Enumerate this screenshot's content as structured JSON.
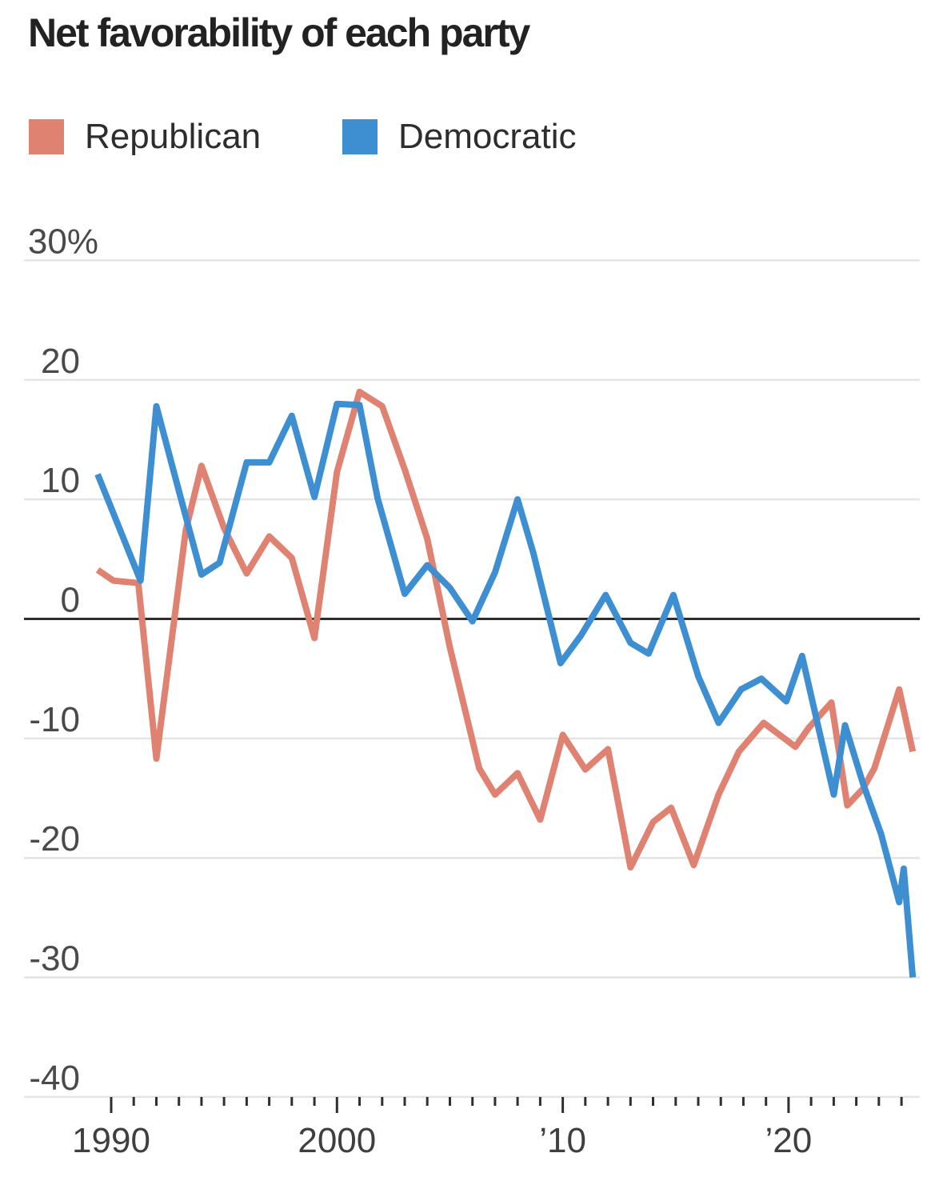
{
  "header": {
    "title": "Net favorability of each party"
  },
  "legend": {
    "items": [
      {
        "label": "Republican",
        "color": "#df8271"
      },
      {
        "label": "Democratic",
        "color": "#3e8fd2"
      }
    ]
  },
  "colors": {
    "republican": "#df8271",
    "democratic": "#3e8fd2",
    "gridline": "#e4e4e4",
    "zero_line": "#2d2d2d",
    "tick": "#2f2f2f",
    "title_text": "#222222",
    "axis_text": "#4a4a4a"
  },
  "chart_data": {
    "type": "line",
    "title": "Net favorability of each party",
    "grid": "horizontal",
    "legend_position": "top-left",
    "y_axis": {
      "unit": "%",
      "range": [
        -40,
        30
      ],
      "zero_line": true,
      "ticks": [
        {
          "value": 30,
          "label": "30%"
        },
        {
          "value": 20,
          "label": "20"
        },
        {
          "value": 10,
          "label": "10"
        },
        {
          "value": 0,
          "label": "0"
        },
        {
          "value": -10,
          "label": "-10"
        },
        {
          "value": -20,
          "label": "-20"
        },
        {
          "value": -30,
          "label": "-30"
        },
        {
          "value": -40,
          "label": "-40"
        }
      ]
    },
    "x_axis": {
      "range": [
        1989,
        2026
      ],
      "minor_ticks": {
        "from": 1990,
        "to": 2025,
        "step": 1
      },
      "major_ticks": [
        {
          "year": 1990,
          "label": "1990"
        },
        {
          "year": 2000,
          "label": "2000"
        },
        {
          "year": 2010,
          "label": "’10"
        },
        {
          "year": 2020,
          "label": "’20"
        }
      ]
    },
    "series": [
      {
        "name": "Republican",
        "color": "#df8271",
        "points": [
          [
            1989.4,
            4.1
          ],
          [
            1990.1,
            3.2
          ],
          [
            1991.2,
            3.0
          ],
          [
            1992,
            -11.7
          ],
          [
            1993.3,
            7.4
          ],
          [
            1994,
            12.8
          ],
          [
            1995,
            7.6
          ],
          [
            1996,
            3.8
          ],
          [
            1997,
            6.9
          ],
          [
            1998,
            5.1
          ],
          [
            1999,
            -1.6
          ],
          [
            2000,
            12.3
          ],
          [
            2001,
            19.0
          ],
          [
            2002,
            17.8
          ],
          [
            2003,
            12.5
          ],
          [
            2004,
            6.7
          ],
          [
            2005,
            -2.4
          ],
          [
            2006.3,
            -12.5
          ],
          [
            2007,
            -14.7
          ],
          [
            2008,
            -12.9
          ],
          [
            2009,
            -16.8
          ],
          [
            2010,
            -9.7
          ],
          [
            2011,
            -12.6
          ],
          [
            2012,
            -10.9
          ],
          [
            2013,
            -20.8
          ],
          [
            2014,
            -17.0
          ],
          [
            2014.8,
            -15.8
          ],
          [
            2015.8,
            -20.6
          ],
          [
            2016.9,
            -14.7
          ],
          [
            2017.8,
            -11.1
          ],
          [
            2018.3,
            -10.0
          ],
          [
            2018.9,
            -8.7
          ],
          [
            2020.3,
            -10.7
          ],
          [
            2020.9,
            -9.1
          ],
          [
            2021.9,
            -7.0
          ],
          [
            2022.6,
            -15.6
          ],
          [
            2023.3,
            -14.2
          ],
          [
            2023.8,
            -12.5
          ],
          [
            2024.9,
            -5.9
          ],
          [
            2025.5,
            -11.1
          ]
        ]
      },
      {
        "name": "Democratic",
        "color": "#3e8fd2",
        "points": [
          [
            1989.4,
            12.1
          ],
          [
            1991.3,
            3.2
          ],
          [
            1992,
            17.8
          ],
          [
            1993,
            10.7
          ],
          [
            1994,
            3.7
          ],
          [
            1994.8,
            4.7
          ],
          [
            1996,
            13.1
          ],
          [
            1997,
            13.1
          ],
          [
            1998,
            17.0
          ],
          [
            1999,
            10.2
          ],
          [
            2000,
            18.0
          ],
          [
            2001,
            17.9
          ],
          [
            2001.8,
            10.1
          ],
          [
            2003,
            2.1
          ],
          [
            2004,
            4.5
          ],
          [
            2005,
            2.6
          ],
          [
            2006,
            -0.2
          ],
          [
            2007,
            3.9
          ],
          [
            2008,
            10.0
          ],
          [
            2008.7,
            5.5
          ],
          [
            2009.9,
            -3.7
          ],
          [
            2010.8,
            -1.4
          ],
          [
            2011.9,
            2.0
          ],
          [
            2013,
            -2.0
          ],
          [
            2013.8,
            -2.9
          ],
          [
            2014.9,
            2.0
          ],
          [
            2016,
            -4.8
          ],
          [
            2016.9,
            -8.7
          ],
          [
            2017.9,
            -5.9
          ],
          [
            2018.8,
            -5.0
          ],
          [
            2019.9,
            -6.9
          ],
          [
            2020.6,
            -3.1
          ],
          [
            2022,
            -14.7
          ],
          [
            2022.5,
            -8.9
          ],
          [
            2023.3,
            -13.8
          ],
          [
            2024.1,
            -18.0
          ],
          [
            2024.9,
            -23.7
          ],
          [
            2025.1,
            -20.9
          ],
          [
            2025.5,
            -30.0
          ]
        ]
      }
    ]
  }
}
